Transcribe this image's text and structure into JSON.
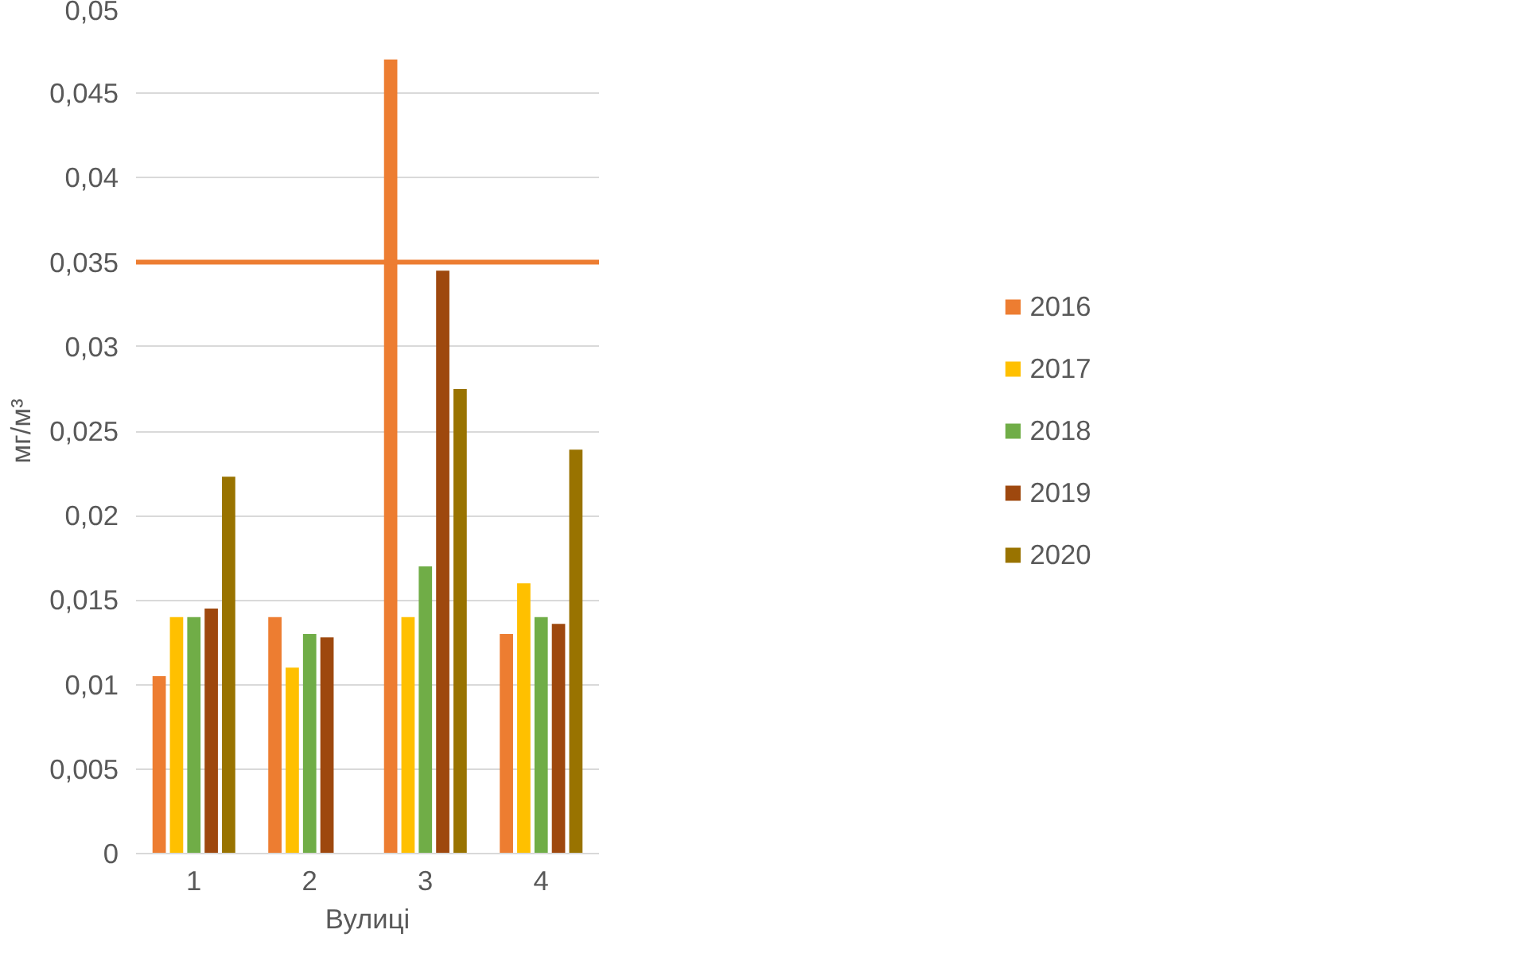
{
  "chart_data": {
    "type": "bar",
    "xlabel": "Вулиці",
    "ylabel": "мг/м³",
    "categories": [
      "1",
      "2",
      "3",
      "4"
    ],
    "series": [
      {
        "name": "2016",
        "color": "#ed7d31",
        "values": [
          0.0105,
          0.014,
          0.047,
          0.013
        ]
      },
      {
        "name": "2017",
        "color": "#ffc000",
        "values": [
          0.014,
          0.011,
          0.014,
          0.016
        ]
      },
      {
        "name": "2018",
        "color": "#70ad47",
        "values": [
          0.014,
          0.013,
          0.017,
          0.014
        ]
      },
      {
        "name": "2019",
        "color": "#9e480e",
        "values": [
          0.0145,
          0.0128,
          0.0345,
          0.0136
        ]
      },
      {
        "name": "2020",
        "color": "#997300",
        "values": [
          0.0223,
          null,
          0.0275,
          0.0239
        ]
      }
    ],
    "ylim": [
      0,
      0.05
    ],
    "yticks": [
      0,
      {
        "value": 0.005,
        "label": "0,005"
      },
      {
        "value": 0.01,
        "label": "0,01"
      },
      {
        "value": 0.015,
        "label": "0,015"
      },
      {
        "value": 0.02,
        "label": "0,02"
      },
      {
        "value": 0.025,
        "label": "0,025"
      },
      {
        "value": 0.03,
        "label": "0,03"
      },
      {
        "value": 0.035,
        "label": "0,035"
      },
      {
        "value": 0.04,
        "label": "0,04"
      },
      {
        "value": 0.045,
        "label": "0,045"
      },
      {
        "value": 0.05,
        "label": "0,05"
      }
    ],
    "ref_lines": [
      {
        "axis": "y",
        "value": 0.035,
        "color": "#ed7d31"
      }
    ],
    "grid": "y",
    "legend": "right"
  }
}
